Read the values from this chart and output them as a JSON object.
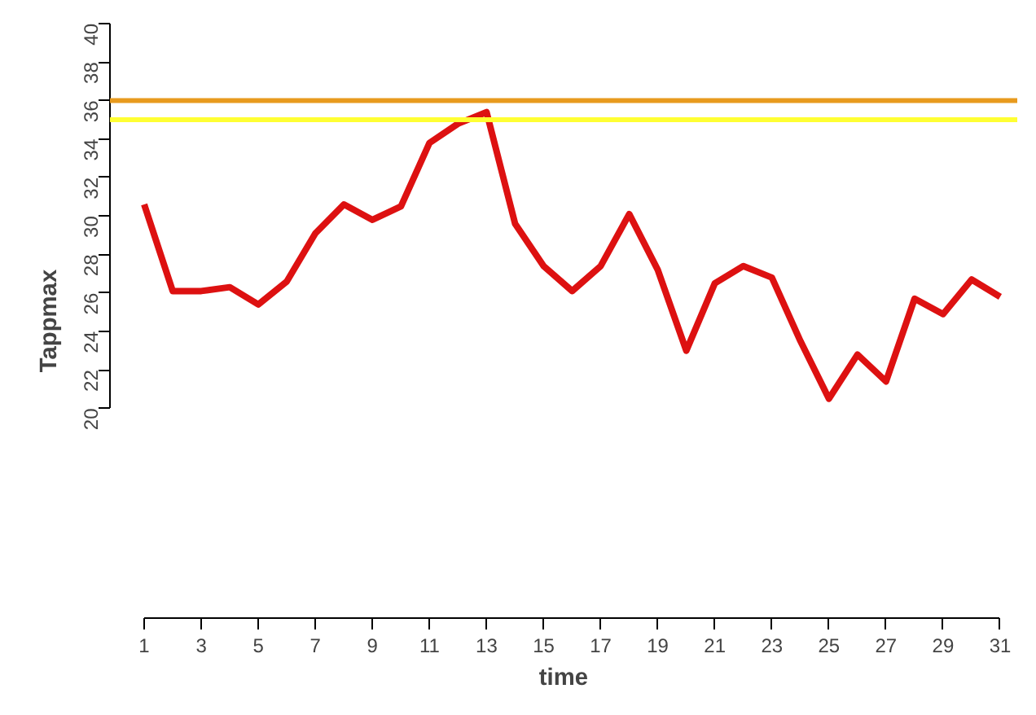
{
  "chart_data": {
    "type": "line",
    "xlabel": "time",
    "ylabel": "Tappmax",
    "x": [
      1,
      2,
      3,
      4,
      5,
      6,
      7,
      8,
      9,
      10,
      11,
      12,
      13,
      14,
      15,
      16,
      17,
      18,
      19,
      20,
      21,
      22,
      23,
      24,
      25,
      26,
      27,
      28,
      29,
      30,
      31
    ],
    "series": [
      {
        "color": "#dd1111",
        "values": [
          30.6,
          26.1,
          26.1,
          26.3,
          25.4,
          26.6,
          29.1,
          30.6,
          29.8,
          30.5,
          33.8,
          34.8,
          35.4,
          29.6,
          27.4,
          26.1,
          27.4,
          30.1,
          27.2,
          23.0,
          26.5,
          27.4,
          26.8,
          23.5,
          20.5,
          22.8,
          21.4,
          25.7,
          24.9,
          26.7,
          25.8
        ]
      }
    ],
    "xlim": [
      -0.2,
      31.6
    ],
    "ylim": [
      9.1,
      40
    ],
    "xticks": [
      1,
      3,
      5,
      7,
      9,
      11,
      13,
      15,
      17,
      19,
      21,
      23,
      25,
      27,
      29,
      31
    ],
    "yticks": [
      20,
      22,
      24,
      26,
      28,
      30,
      32,
      34,
      36,
      38,
      40
    ],
    "ref_lines": [
      {
        "axis": "y",
        "value": 36,
        "color": "#e89a1e"
      },
      {
        "axis": "y",
        "value": 35,
        "color": "#ffff33"
      }
    ]
  }
}
